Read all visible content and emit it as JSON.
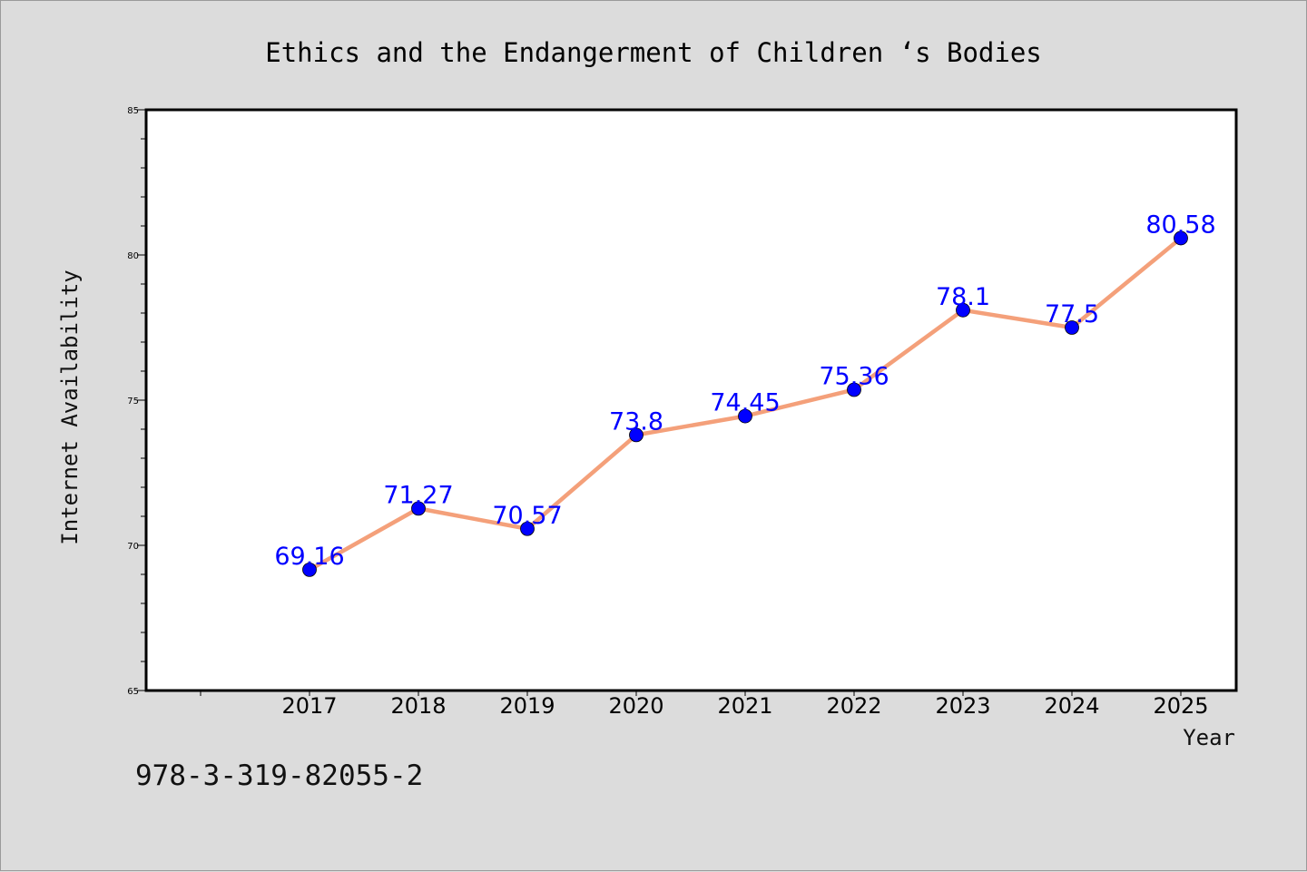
{
  "chart_data": {
    "type": "line",
    "title": "Ethics and the Endangerment of Children ‘s Bodies",
    "xlabel": "Year",
    "ylabel": "Internet Availability",
    "x": [
      "2017",
      "2018",
      "2019",
      "2020",
      "2021",
      "2022",
      "2023",
      "2024",
      "2025"
    ],
    "series": [
      {
        "values": [
          69.16,
          71.27,
          70.57,
          73.8,
          74.45,
          75.36,
          78.1,
          77.5,
          80.58
        ],
        "labels": [
          "69.16",
          "71.27",
          "70.57",
          "73.8",
          "74.45",
          "75.36",
          "78.1",
          "77.5",
          "80.58"
        ],
        "line_color": "#f4a07a",
        "marker_color": "#0000ff"
      }
    ],
    "ylim": [
      65,
      85
    ],
    "y_ticks": [
      "65",
      "70",
      "75",
      "80",
      "85"
    ],
    "grid": false,
    "background": "#dcdcdc",
    "plot_background": "#ffffff"
  },
  "footnote": "978-3-319-82055-2"
}
